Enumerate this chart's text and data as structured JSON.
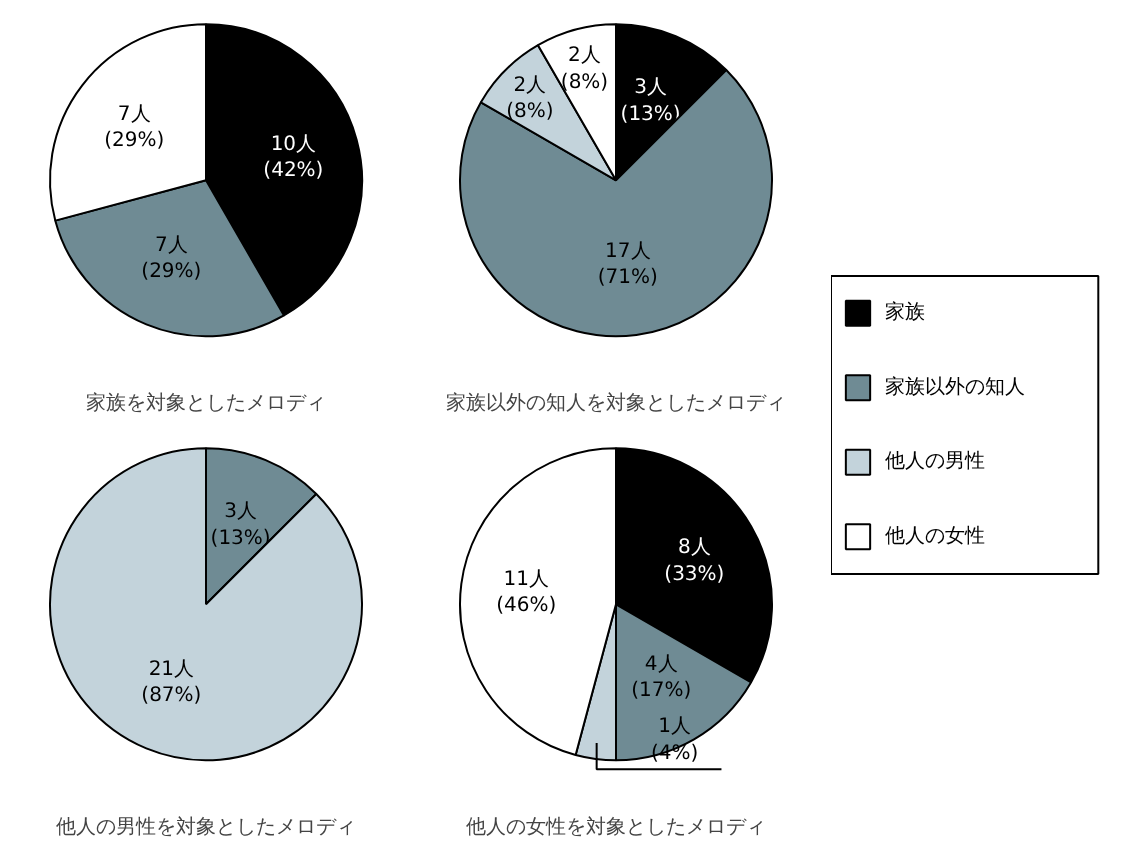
{
  "chart_data": [
    {
      "type": "pie",
      "title": "家族を対象としたメロディ",
      "categories": [
        "家族",
        "家族以外の知人",
        "他人の男性",
        "他人の女性"
      ],
      "values": [
        10,
        7,
        0,
        7
      ],
      "colors": [
        "#000000",
        "#6f8b94",
        "#c3d3db",
        "#ffffff"
      ],
      "value_labels": [
        "10人\n(42%)",
        "7人\n(29%)",
        null,
        "7人\n(29%)"
      ],
      "legend": "right"
    },
    {
      "type": "pie",
      "title": "家族以外の知人を対象としたメロディ",
      "categories": [
        null,
        null,
        null,
        null
      ],
      "values": [
        3,
        17,
        2,
        2
      ],
      "colors": [
        "#000000",
        "#6f8b94",
        "#c3d3db",
        "#ffffff"
      ],
      "value_labels": [
        "3人\n(13%)",
        "17人\n(71%)",
        "2人\n(8%)",
        "2人\n(8%)"
      ]
    },
    {
      "type": "pie",
      "title": "他人の男性を対象としたメロディ",
      "categories": [
        null,
        null,
        null,
        null
      ],
      "values": [
        0,
        3,
        21,
        0
      ],
      "colors": [
        "#000000",
        "#6f8b94",
        "#c3d3db",
        "#ffffff"
      ],
      "value_labels": [
        null,
        "3人\n(13%)",
        "21人\n(87%)",
        null
      ]
    },
    {
      "type": "pie",
      "title": "他人の女性を対象としたメロディ",
      "categories": [
        null,
        null,
        null,
        null
      ],
      "values": [
        8,
        4,
        1,
        11
      ],
      "colors": [
        "#000000",
        "#6f8b94",
        "#c3d3db",
        "#ffffff"
      ],
      "value_labels": [
        "8人\n(33%)",
        "4人\n(17%)",
        "1人\n(4%)",
        "11人\n(46%)"
      ]
    }
  ]
}
